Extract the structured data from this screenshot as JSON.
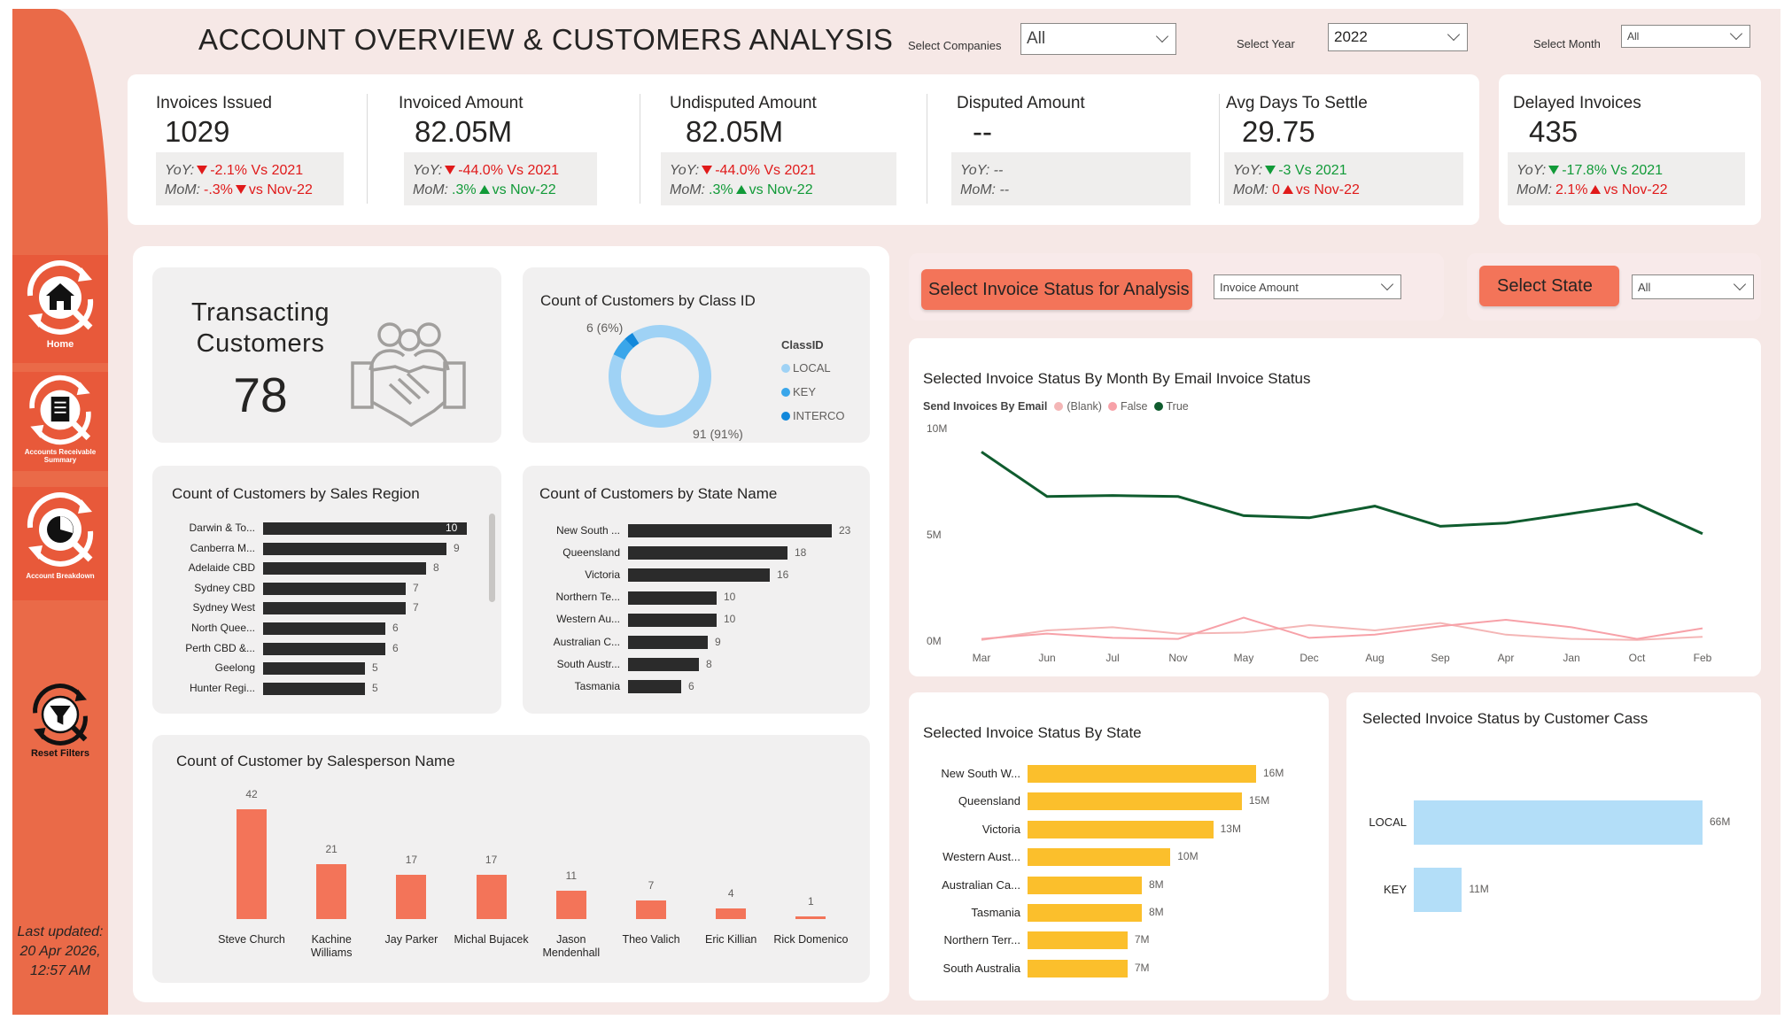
{
  "header": {
    "title": "ACCOUNT OVERVIEW & CUSTOMERS ANALYSIS",
    "slicers": [
      {
        "label": "Select Companies",
        "value": "All"
      },
      {
        "label": "Select Year",
        "value": "2022"
      },
      {
        "label": "Select Month",
        "value": "All"
      }
    ]
  },
  "sidebar": {
    "items": [
      {
        "label": "Home",
        "icon": "home-icon"
      },
      {
        "label": "Accounts Receivable Summary",
        "icon": "invoice-icon"
      },
      {
        "label": "Account Breakdown",
        "icon": "pie-chart-icon"
      },
      {
        "label": "Reset Filters",
        "icon": "filter-icon"
      }
    ],
    "last_updated": "Last updated: 20 Apr 2026, 12:57 AM"
  },
  "kpis": [
    {
      "title": "Invoices Issued",
      "value": "1029",
      "yoy_label": "YoY:",
      "yoy": "-2.1% Vs 2021",
      "yoy_dir": "down",
      "yoy_color": "red",
      "mom_label": "MoM:",
      "mom": "-.3%",
      "mom_dir": "down",
      "mom_color": "red",
      "mom_tail": "vs Nov-22",
      "mom_tail_color": "red"
    },
    {
      "title": "Invoiced Amount",
      "value": "82.05M",
      "yoy_label": "YoY:",
      "yoy": "-44.0% Vs 2021",
      "yoy_dir": "down",
      "yoy_color": "red",
      "mom_label": "MoM:",
      "mom": ".3%",
      "mom_dir": "up",
      "mom_color": "green",
      "mom_tail": "vs Nov-22",
      "mom_tail_color": "green"
    },
    {
      "title": "Undisputed Amount",
      "value": "82.05M",
      "yoy_label": "YoY:",
      "yoy": "-44.0% Vs 2021",
      "yoy_dir": "down",
      "yoy_color": "red",
      "mom_label": "MoM:",
      "mom": ".3%",
      "mom_dir": "up",
      "mom_color": "green",
      "mom_tail": "vs Nov-22",
      "mom_tail_color": "green"
    },
    {
      "title": "Disputed Amount",
      "value": "--",
      "yoy_label": "YoY: --",
      "yoy": "",
      "yoy_dir": "",
      "yoy_color": "",
      "mom_label": "MoM: --",
      "mom": "",
      "mom_dir": "",
      "mom_color": "",
      "mom_tail": "",
      "mom_tail_color": ""
    },
    {
      "title": "Avg Days To Settle",
      "value": "29.75",
      "yoy_label": "YoY:",
      "yoy": "-3 Vs 2021",
      "yoy_dir": "down-green",
      "yoy_color": "green",
      "mom_label": "MoM:",
      "mom": "0",
      "mom_dir": "up-red",
      "mom_color": "red",
      "mom_tail": "vs Nov-22",
      "mom_tail_color": "red"
    },
    {
      "title": "Delayed Invoices",
      "value": "435",
      "yoy_label": "YoY:",
      "yoy": "-17.8% Vs 2021",
      "yoy_dir": "down-green",
      "yoy_color": "green",
      "mom_label": "MoM:",
      "mom": "2.1%",
      "mom_dir": "up-red",
      "mom_color": "red",
      "mom_tail": "vs Nov-22",
      "mom_tail_color": "red"
    }
  ],
  "transacting": {
    "title_line1": "Transacting",
    "title_line2": "Customers",
    "value": "78",
    "icon": "handshake-icon"
  },
  "class_donut": {
    "title": "Count of Customers by Class ID",
    "legend_title": "ClassID",
    "legend": [
      "LOCAL",
      "KEY",
      "INTERCO"
    ],
    "small_label": "6 (6%)",
    "big_label": "91 (91%)",
    "colors": [
      "#9fd2f5",
      "#3aa6ea",
      "#1288db"
    ]
  },
  "sales_region": {
    "title": "Count of Customers by Sales Region",
    "categories": [
      "Darwin & To...",
      "Canberra M...",
      "Adelaide CBD",
      "Sydney CBD",
      "Sydney West",
      "North Quee...",
      "Perth CBD &...",
      "Geelong",
      "Hunter Regi..."
    ],
    "values": [
      "10",
      "9",
      "8",
      "7",
      "7",
      "6",
      "6",
      "5",
      "5"
    ]
  },
  "state_name": {
    "title": "Count of Customers by State Name",
    "categories": [
      "New South ...",
      "Queensland",
      "Victoria",
      "Northern Te...",
      "Western Au...",
      "Australian C...",
      "South Austr...",
      "Tasmania"
    ],
    "values": [
      "23",
      "18",
      "16",
      "10",
      "10",
      "9",
      "8",
      "6"
    ]
  },
  "salesperson": {
    "title": "Count of Customer by Salesperson Name",
    "names": [
      "Steve Church",
      "Kachine Williams",
      "Jay Parker",
      "Michal Bujacek",
      "Jason Mendenhall",
      "Theo Valich",
      "Eric Killian",
      "Rick Domenico"
    ],
    "values": [
      "42",
      "21",
      "17",
      "17",
      "11",
      "7",
      "4",
      "1"
    ]
  },
  "controls": {
    "status_button": "Select Invoice Status for Analysis",
    "status_value": "Invoice Amount",
    "state_button": "Select State",
    "state_value": "All"
  },
  "line_chart": {
    "title": "Selected Invoice Status By Month By Email Invoice Status",
    "legend_title": "Send Invoices By Email",
    "legend": [
      "(Blank)",
      "False",
      "True"
    ],
    "colors": [
      "#f4b6b6",
      "#f7a1a8",
      "#0f5c2e"
    ],
    "y_ticks": [
      "10M",
      "5M",
      "0M"
    ],
    "x": [
      "Mar",
      "Jun",
      "Jul",
      "Nov",
      "May",
      "Dec",
      "Aug",
      "Sep",
      "Apr",
      "Jan",
      "Oct",
      "Feb"
    ]
  },
  "by_state": {
    "title": "Selected Invoice Status By State",
    "categories": [
      "New South W...",
      "Queensland",
      "Victoria",
      "Western Aust...",
      "Australian Ca...",
      "Tasmania",
      "Northern Terr...",
      "South Australia"
    ],
    "values": [
      "16M",
      "15M",
      "13M",
      "10M",
      "8M",
      "8M",
      "7M",
      "7M"
    ]
  },
  "by_class": {
    "title": "Selected Invoice Status by Customer Cass",
    "categories": [
      "LOCAL",
      "KEY"
    ],
    "values": [
      "66M",
      "11M"
    ]
  },
  "chart_data": [
    {
      "type": "bar",
      "title": "Count of Customers by Sales Region",
      "categories": [
        "Darwin & To...",
        "Canberra M...",
        "Adelaide CBD",
        "Sydney CBD",
        "Sydney West",
        "North Quee...",
        "Perth CBD &...",
        "Geelong",
        "Hunter Regi..."
      ],
      "values": [
        10,
        9,
        8,
        7,
        7,
        6,
        6,
        5,
        5
      ],
      "orientation": "horizontal",
      "color": "#2b2b2b"
    },
    {
      "type": "bar",
      "title": "Count of Customers by State Name",
      "categories": [
        "New South ...",
        "Queensland",
        "Victoria",
        "Northern Te...",
        "Western Au...",
        "Australian C...",
        "South Austr...",
        "Tasmania"
      ],
      "values": [
        23,
        18,
        16,
        10,
        10,
        9,
        8,
        6
      ],
      "orientation": "horizontal",
      "color": "#2b2b2b"
    },
    {
      "type": "bar",
      "title": "Count of Customer by Salesperson Name",
      "categories": [
        "Steve Church",
        "Kachine Williams",
        "Jay Parker",
        "Michal Bujacek",
        "Jason Mendenhall",
        "Theo Valich",
        "Eric Killian",
        "Rick Domenico"
      ],
      "values": [
        42,
        21,
        17,
        17,
        11,
        7,
        4,
        1
      ],
      "orientation": "vertical",
      "color": "#f37459"
    },
    {
      "type": "pie",
      "title": "Count of Customers by Class ID",
      "categories": [
        "LOCAL",
        "KEY",
        "INTERCO"
      ],
      "values": [
        91,
        6,
        3
      ]
    },
    {
      "type": "line",
      "title": "Selected Invoice Status By Month By Email Invoice Status",
      "x": [
        "Mar",
        "Jun",
        "Jul",
        "Nov",
        "May",
        "Dec",
        "Aug",
        "Sep",
        "Apr",
        "Jan",
        "Oct",
        "Feb"
      ],
      "ylim": [
        0,
        10000000
      ],
      "series": [
        {
          "name": "True",
          "values": [
            8900000,
            6800000,
            6850000,
            6800000,
            5900000,
            5800000,
            6350000,
            5400000,
            5550000,
            6000000,
            6450000,
            5050000
          ]
        },
        {
          "name": "False",
          "values": [
            100000,
            350000,
            150000,
            100000,
            1100000,
            150000,
            300000,
            700000,
            1000000,
            650000,
            100000,
            600000
          ]
        },
        {
          "name": "(Blank)",
          "values": [
            50000,
            500000,
            650000,
            350000,
            400000,
            750000,
            500000,
            850000,
            300000,
            100000,
            50000,
            200000
          ]
        }
      ]
    },
    {
      "type": "bar",
      "title": "Selected Invoice Status By State",
      "categories": [
        "New South W...",
        "Queensland",
        "Victoria",
        "Western Aust...",
        "Australian Ca...",
        "Tasmania",
        "Northern Terr...",
        "South Australia"
      ],
      "values": [
        16,
        15,
        13,
        10,
        8,
        8,
        7,
        7
      ],
      "orientation": "horizontal",
      "color": "#fbbf2c"
    },
    {
      "type": "bar",
      "title": "Selected Invoice Status by Customer Cass",
      "categories": [
        "LOCAL",
        "KEY"
      ],
      "values": [
        66,
        11
      ],
      "orientation": "horizontal",
      "color": "#b3def8"
    }
  ]
}
